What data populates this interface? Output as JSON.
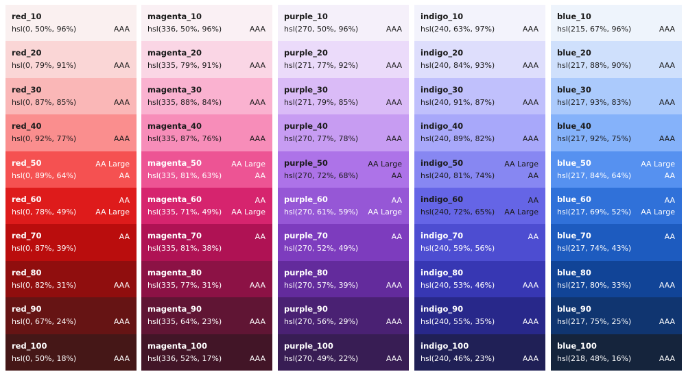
{
  "palettes": [
    {
      "swatches": [
        {
          "name": "red_10",
          "hsl": "hsl(0, 50%, 96%)",
          "badge_bottom": "AAA"
        },
        {
          "name": "red_20",
          "hsl": "hsl(0, 79%, 91%)",
          "badge_bottom": "AAA"
        },
        {
          "name": "red_30",
          "hsl": "hsl(0, 87%, 85%)",
          "badge_bottom": "AAA"
        },
        {
          "name": "red_40",
          "hsl": "hsl(0, 92%, 77%)",
          "badge_bottom": "AAA"
        },
        {
          "name": "red_50",
          "hsl": "hsl(0, 89%, 64%)",
          "badge_top": "AA Large",
          "badge_bottom": "AA"
        },
        {
          "name": "red_60",
          "hsl": "hsl(0, 78%, 49%)",
          "badge_top": "AA",
          "badge_bottom": "AA Large"
        },
        {
          "name": "red_70",
          "hsl": "hsl(0, 87%, 39%)",
          "badge_top": "AA"
        },
        {
          "name": "red_80",
          "hsl": "hsl(0, 82%, 31%)",
          "badge_bottom": "AAA"
        },
        {
          "name": "red_90",
          "hsl": "hsl(0, 67%, 24%)",
          "badge_bottom": "AAA"
        },
        {
          "name": "red_100",
          "hsl": "hsl(0, 50%, 18%)",
          "badge_bottom": "AAA"
        }
      ]
    },
    {
      "swatches": [
        {
          "name": "magenta_10",
          "hsl": "hsl(336, 50%, 96%)",
          "badge_bottom": "AAA"
        },
        {
          "name": "magenta_20",
          "hsl": "hsl(335, 79%, 91%)",
          "badge_bottom": "AAA"
        },
        {
          "name": "magenta_30",
          "hsl": "hsl(335, 88%, 84%)",
          "badge_bottom": "AAA"
        },
        {
          "name": "magenta_40",
          "hsl": "hsl(335, 87%, 76%)",
          "badge_bottom": "AAA"
        },
        {
          "name": "magenta_50",
          "hsl": "hsl(335, 81%, 63%)",
          "badge_top": "AA Large",
          "badge_bottom": "AA"
        },
        {
          "name": "magenta_60",
          "hsl": "hsl(335, 71%, 49%)",
          "badge_top": "AA",
          "badge_bottom": "AA Large"
        },
        {
          "name": "magenta_70",
          "hsl": "hsl(335, 81%, 38%)",
          "badge_top": "AA"
        },
        {
          "name": "magenta_80",
          "hsl": "hsl(335, 77%, 31%)",
          "badge_bottom": "AAA"
        },
        {
          "name": "magenta_90",
          "hsl": "hsl(335, 64%, 23%)",
          "badge_bottom": "AAA"
        },
        {
          "name": "magenta_100",
          "hsl": "hsl(336, 52%, 17%)",
          "badge_bottom": "AAA"
        }
      ]
    },
    {
      "swatches": [
        {
          "name": "purple_10",
          "hsl": "hsl(270, 50%, 96%)",
          "badge_bottom": "AAA"
        },
        {
          "name": "purple_20",
          "hsl": "hsl(271, 77%, 92%)",
          "badge_bottom": "AAA"
        },
        {
          "name": "purple_30",
          "hsl": "hsl(271, 79%, 85%)",
          "badge_bottom": "AAA"
        },
        {
          "name": "purple_40",
          "hsl": "hsl(270, 77%, 78%)",
          "badge_bottom": "AAA"
        },
        {
          "name": "purple_50",
          "hsl": "hsl(270, 72%, 68%)",
          "badge_top": "AA Large",
          "badge_bottom": "AA"
        },
        {
          "name": "purple_60",
          "hsl": "hsl(270, 61%, 59%)",
          "badge_top": "AA",
          "badge_bottom": "AA Large"
        },
        {
          "name": "purple_70",
          "hsl": "hsl(270, 52%, 49%)",
          "badge_top": "AA"
        },
        {
          "name": "purple_80",
          "hsl": "hsl(270, 57%, 39%)",
          "badge_bottom": "AAA"
        },
        {
          "name": "purple_90",
          "hsl": "hsl(270, 56%, 29%)",
          "badge_bottom": "AAA"
        },
        {
          "name": "purple_100",
          "hsl": "hsl(270, 49%, 22%)",
          "badge_bottom": "AAA"
        }
      ]
    },
    {
      "swatches": [
        {
          "name": "indigo_10",
          "hsl": "hsl(240, 63%, 97%)",
          "badge_bottom": "AAA"
        },
        {
          "name": "indigo_20",
          "hsl": "hsl(240, 84%, 93%)",
          "badge_bottom": "AAA"
        },
        {
          "name": "indigo_30",
          "hsl": "hsl(240, 91%, 87%)",
          "badge_bottom": "AAA"
        },
        {
          "name": "indigo_40",
          "hsl": "hsl(240, 89%, 82%)",
          "badge_bottom": "AAA"
        },
        {
          "name": "indigo_50",
          "hsl": "hsl(240, 81%, 74%)",
          "badge_top": "AA Large",
          "badge_bottom": "AA"
        },
        {
          "name": "indigo_60",
          "hsl": "hsl(240, 72%, 65%)",
          "badge_top": "AA",
          "badge_bottom": "AA Large"
        },
        {
          "name": "indigo_70",
          "hsl": "hsl(240, 59%, 56%)",
          "badge_top": "AA"
        },
        {
          "name": "indigo_80",
          "hsl": "hsl(240, 53%, 46%)",
          "badge_bottom": "AAA"
        },
        {
          "name": "indigo_90",
          "hsl": "hsl(240, 55%, 35%)",
          "badge_bottom": "AAA"
        },
        {
          "name": "indigo_100",
          "hsl": "hsl(240, 46%, 23%)",
          "badge_bottom": "AAA"
        }
      ]
    },
    {
      "swatches": [
        {
          "name": "blue_10",
          "hsl": "hsl(215, 67%, 96%)",
          "badge_bottom": "AAA"
        },
        {
          "name": "blue_20",
          "hsl": "hsl(217, 88%, 90%)",
          "badge_bottom": "AAA"
        },
        {
          "name": "blue_30",
          "hsl": "hsl(217, 93%, 83%)",
          "badge_bottom": "AAA"
        },
        {
          "name": "blue_40",
          "hsl": "hsl(217, 92%, 75%)",
          "badge_bottom": "AAA"
        },
        {
          "name": "blue_50",
          "hsl": "hsl(217, 84%, 64%)",
          "badge_top": "AA Large",
          "badge_bottom": "AA"
        },
        {
          "name": "blue_60",
          "hsl": "hsl(217, 69%, 52%)",
          "badge_top": "AA",
          "badge_bottom": "AA Large"
        },
        {
          "name": "blue_70",
          "hsl": "hsl(217, 74%, 43%)",
          "badge_top": "AA"
        },
        {
          "name": "blue_80",
          "hsl": "hsl(217, 80%, 33%)",
          "badge_bottom": "AAA"
        },
        {
          "name": "blue_90",
          "hsl": "hsl(217, 75%, 25%)",
          "badge_bottom": "AAA"
        },
        {
          "name": "blue_100",
          "hsl": "hsl(218, 48%, 16%)",
          "badge_bottom": "AAA"
        }
      ]
    }
  ]
}
